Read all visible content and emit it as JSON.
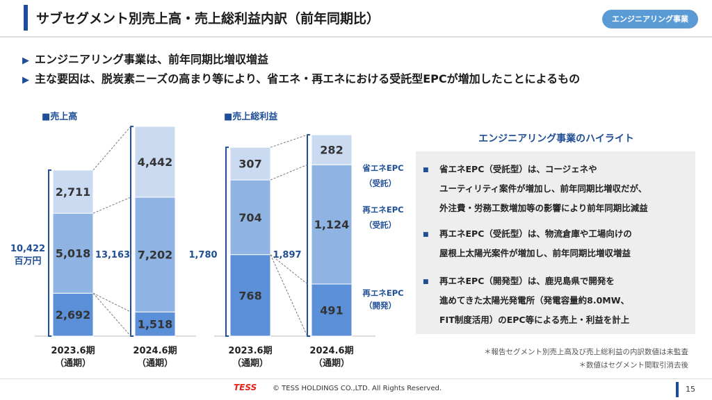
{
  "header": {
    "title": "サブセグメント別売上高・売上総利益内訳（前年同期比）",
    "badge": "エンジニアリング事業"
  },
  "bullets": [
    "エンジニアリング事業は、前年同期比増収増益",
    "主な要因は、脱炭素ニーズの高まり等により、省エネ・再エネにおける受託型EPCが増加したことによるもの"
  ],
  "chart_data": [
    {
      "type": "bar",
      "stacked": true,
      "title": "■売上高",
      "categories": [
        "2023.6期\n（通期）",
        "2024.6期\n（通期）"
      ],
      "series": [
        {
          "name": "再エネEPC（開発）",
          "values": [
            2692,
            1518
          ]
        },
        {
          "name": "再エネEPC（受託）",
          "values": [
            5018,
            7202
          ]
        },
        {
          "name": "省エネEPC（受託）",
          "values": [
            2711,
            4442
          ]
        }
      ],
      "totals": [
        "10,422",
        "13,163"
      ],
      "total_unit": "百万円",
      "labels": [
        [
          "2,692",
          "5,018",
          "2,711"
        ],
        [
          "1,518",
          "7,202",
          "4,442"
        ]
      ]
    },
    {
      "type": "bar",
      "stacked": true,
      "title": "■売上総利益",
      "categories": [
        "2023.6期\n（通期）",
        "2024.6期\n（通期）"
      ],
      "series": [
        {
          "name": "再エネEPC（開発）",
          "values": [
            768,
            491
          ]
        },
        {
          "name": "再エネEPC（受託）",
          "values": [
            704,
            1124
          ]
        },
        {
          "name": "省エネEPC（受託）",
          "values": [
            307,
            282
          ]
        }
      ],
      "totals": [
        "1,780",
        "1,897"
      ],
      "labels": [
        [
          "768",
          "704",
          "307"
        ],
        [
          "491",
          "1,124",
          "282"
        ]
      ]
    }
  ],
  "categories_top": [
    "2023.6期",
    "2024.6期"
  ],
  "categories_bottom": [
    "（通期）",
    "（通期）"
  ],
  "legend": [
    {
      "line1": "省エネEPC",
      "line2": "（受託）"
    },
    {
      "line1": "再エネEPC",
      "line2": "（受託）"
    },
    {
      "line1": "再エネEPC",
      "line2": "（開発）"
    }
  ],
  "colors": {
    "dev": "#5b8fd8",
    "contract": "#8fb3e3",
    "energy": "#c9daf1",
    "brand": "#1f4e96"
  },
  "highlights": {
    "title": "エンジニアリング事業のハイライト",
    "items": [
      [
        "省エネEPC（受託型）は、コージェネや",
        "ユーティリティ案件が増加し、前年同期比増収だが、",
        "外注費・労務工数増加等の影響により前年同期比減益"
      ],
      [
        "再エネEPC（受託型）は、物流倉庫や工場向けの",
        "屋根上太陽光案件が増加し、前年同期比増収増益"
      ],
      [
        "再エネEPC（開発型）は、鹿児島県で開発を",
        "進めてきた太陽光発電所（発電容量約8.0MW、",
        "FIT制度活用）のEPC等による売上・利益を計上"
      ]
    ],
    "bullet_mark": "■"
  },
  "notes": [
    "＊報告セグメント別売上高及び売上総利益の内訳数値は未監査",
    "＊数値はセグメント間取引消去後"
  ],
  "footer": {
    "logo": "TESS",
    "copyright": "© TESS HOLDINGS CO.,LTD. All Rights Reserved.",
    "page": "15"
  }
}
